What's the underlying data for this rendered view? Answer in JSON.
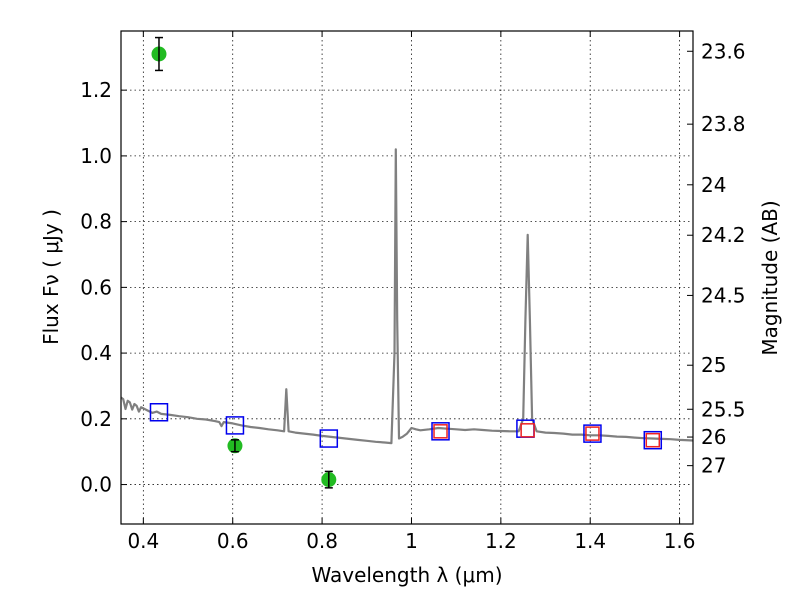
{
  "chart_data": {
    "type": "scatter",
    "xlabel": "Wavelength  λ (μm)",
    "ylabel": "Flux  Fν  ( μJy )",
    "ylabel_right": "Magnitude (AB)",
    "xlim": [
      0.35,
      1.63
    ],
    "ylim": [
      -0.12,
      1.38
    ],
    "grid": true,
    "x_ticks": [
      {
        "value": 0.4,
        "label": "0.4"
      },
      {
        "value": 0.6,
        "label": "0.6"
      },
      {
        "value": 0.8,
        "label": "0.8"
      },
      {
        "value": 1.0,
        "label": "1"
      },
      {
        "value": 1.2,
        "label": "1.2"
      },
      {
        "value": 1.4,
        "label": "1.4"
      },
      {
        "value": 1.6,
        "label": "1.6"
      }
    ],
    "y_ticks": [
      {
        "value": 0.0,
        "label": "0.0"
      },
      {
        "value": 0.2,
        "label": "0.2"
      },
      {
        "value": 0.4,
        "label": "0.4"
      },
      {
        "value": 0.6,
        "label": "0.6"
      },
      {
        "value": 0.8,
        "label": "0.8"
      },
      {
        "value": 1.0,
        "label": "1.0"
      },
      {
        "value": 1.2,
        "label": "1.2"
      }
    ],
    "mag_ticks": [
      {
        "value": 23.6,
        "label": "23.6"
      },
      {
        "value": 23.8,
        "label": "23.8"
      },
      {
        "value": 24.0,
        "label": "24"
      },
      {
        "value": 24.2,
        "label": "24.2"
      },
      {
        "value": 24.5,
        "label": "24.5"
      },
      {
        "value": 25.0,
        "label": "25"
      },
      {
        "value": 25.5,
        "label": "25.5"
      },
      {
        "value": 26.0,
        "label": "26"
      },
      {
        "value": 27.0,
        "label": "27"
      }
    ],
    "series": [
      {
        "kind": "line",
        "color": "#808080",
        "points": [
          [
            0.35,
            0.265
          ],
          [
            0.355,
            0.26
          ],
          [
            0.36,
            0.23
          ],
          [
            0.365,
            0.255
          ],
          [
            0.37,
            0.25
          ],
          [
            0.375,
            0.228
          ],
          [
            0.38,
            0.245
          ],
          [
            0.385,
            0.24
          ],
          [
            0.39,
            0.222
          ],
          [
            0.395,
            0.235
          ],
          [
            0.4,
            0.232
          ],
          [
            0.41,
            0.225
          ],
          [
            0.42,
            0.218
          ],
          [
            0.43,
            0.222
          ],
          [
            0.44,
            0.215
          ],
          [
            0.46,
            0.212
          ],
          [
            0.48,
            0.208
          ],
          [
            0.5,
            0.205
          ],
          [
            0.52,
            0.2
          ],
          [
            0.54,
            0.198
          ],
          [
            0.56,
            0.193
          ],
          [
            0.57,
            0.19
          ],
          [
            0.575,
            0.178
          ],
          [
            0.58,
            0.19
          ],
          [
            0.6,
            0.186
          ],
          [
            0.62,
            0.18
          ],
          [
            0.64,
            0.175
          ],
          [
            0.66,
            0.172
          ],
          [
            0.68,
            0.168
          ],
          [
            0.7,
            0.165
          ],
          [
            0.715,
            0.162
          ],
          [
            0.72,
            0.29
          ],
          [
            0.725,
            0.162
          ],
          [
            0.74,
            0.158
          ],
          [
            0.76,
            0.155
          ],
          [
            0.78,
            0.152
          ],
          [
            0.8,
            0.148
          ],
          [
            0.82,
            0.145
          ],
          [
            0.84,
            0.142
          ],
          [
            0.86,
            0.139
          ],
          [
            0.88,
            0.136
          ],
          [
            0.9,
            0.133
          ],
          [
            0.92,
            0.13
          ],
          [
            0.94,
            0.128
          ],
          [
            0.955,
            0.126
          ],
          [
            0.962,
            0.4
          ],
          [
            0.965,
            1.02
          ],
          [
            0.968,
            0.5
          ],
          [
            0.972,
            0.14
          ],
          [
            0.98,
            0.145
          ],
          [
            0.99,
            0.155
          ],
          [
            1.0,
            0.172
          ],
          [
            1.01,
            0.168
          ],
          [
            1.02,
            0.165
          ],
          [
            1.04,
            0.168
          ],
          [
            1.06,
            0.172
          ],
          [
            1.08,
            0.17
          ],
          [
            1.1,
            0.168
          ],
          [
            1.12,
            0.166
          ],
          [
            1.14,
            0.168
          ],
          [
            1.16,
            0.166
          ],
          [
            1.18,
            0.164
          ],
          [
            1.2,
            0.163
          ],
          [
            1.22,
            0.162
          ],
          [
            1.24,
            0.162
          ],
          [
            1.25,
            0.2
          ],
          [
            1.255,
            0.5
          ],
          [
            1.26,
            0.76
          ],
          [
            1.265,
            0.5
          ],
          [
            1.27,
            0.2
          ],
          [
            1.28,
            0.162
          ],
          [
            1.3,
            0.158
          ],
          [
            1.32,
            0.157
          ],
          [
            1.34,
            0.155
          ],
          [
            1.36,
            0.152
          ],
          [
            1.38,
            0.152
          ],
          [
            1.4,
            0.15
          ],
          [
            1.42,
            0.15
          ],
          [
            1.44,
            0.148
          ],
          [
            1.46,
            0.146
          ],
          [
            1.48,
            0.145
          ],
          [
            1.5,
            0.143
          ],
          [
            1.52,
            0.141
          ],
          [
            1.54,
            0.14
          ],
          [
            1.56,
            0.139
          ],
          [
            1.58,
            0.138
          ],
          [
            1.6,
            0.136
          ],
          [
            1.63,
            0.134
          ]
        ]
      },
      {
        "kind": "points",
        "marker": "square",
        "color": "#0000ee",
        "points": [
          [
            0.435,
            0.22
          ],
          [
            0.605,
            0.18
          ],
          [
            0.815,
            0.14
          ],
          [
            1.065,
            0.162
          ],
          [
            1.255,
            0.17
          ],
          [
            1.405,
            0.155
          ],
          [
            1.54,
            0.135
          ]
        ]
      },
      {
        "kind": "points",
        "marker": "square",
        "color": "#ee2222",
        "points": [
          [
            1.065,
            0.162
          ],
          [
            1.26,
            0.165
          ],
          [
            1.405,
            0.155
          ],
          [
            1.54,
            0.135
          ]
        ]
      },
      {
        "kind": "errorpoints",
        "marker": "circle",
        "color": "#22bb22",
        "points": [
          [
            0.435,
            1.31,
            0.05
          ],
          [
            0.605,
            0.118,
            0.018
          ],
          [
            0.815,
            0.015,
            0.025
          ]
        ]
      }
    ]
  }
}
